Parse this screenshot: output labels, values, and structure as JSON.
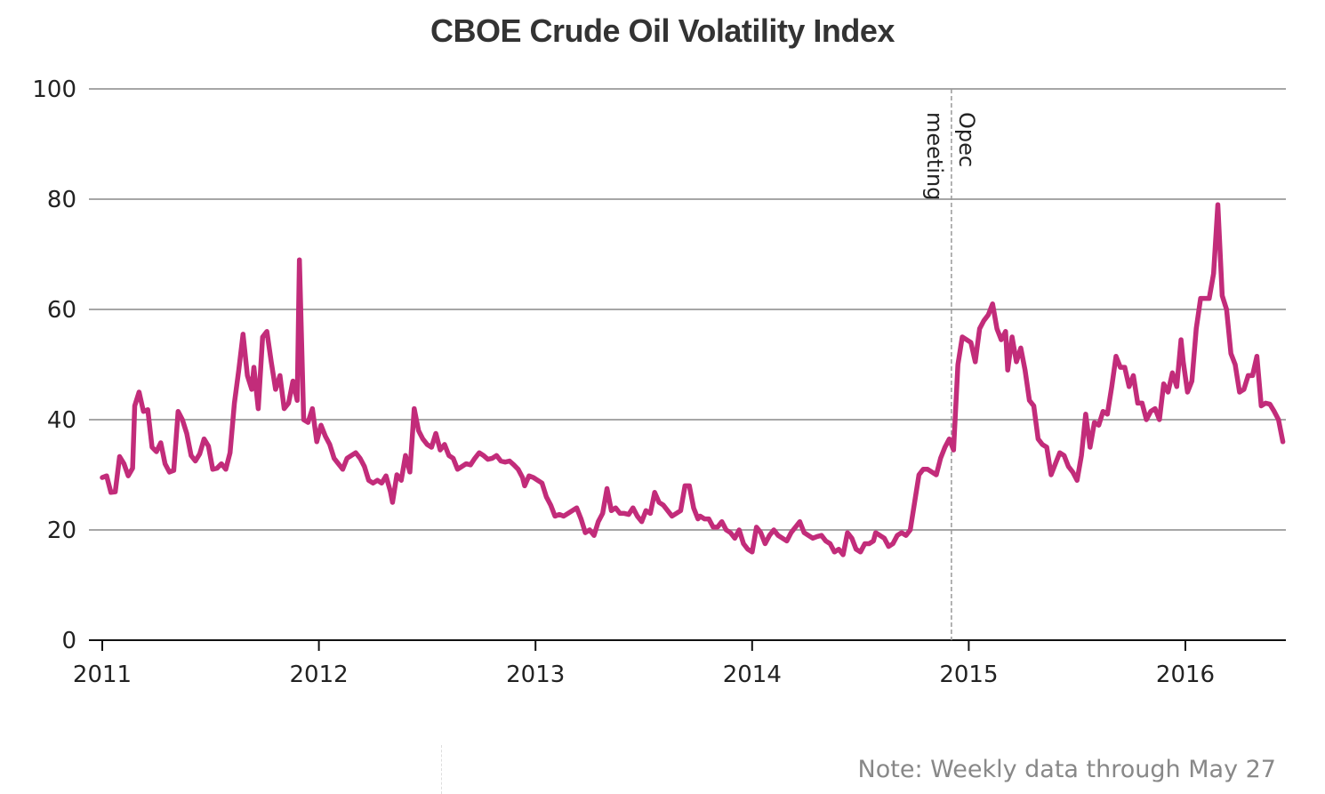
{
  "title": "CBOE Crude Oil Volatility Index",
  "note": "Note: Weekly data through May 27",
  "chart_data": {
    "type": "line",
    "title": "CBOE Crude Oil Volatility Index",
    "xlabel": "",
    "ylabel": "",
    "ylim": [
      0,
      100
    ],
    "xlim": [
      2011,
      2016.45
    ],
    "yticks": [
      0,
      20,
      40,
      60,
      80,
      100
    ],
    "xticks": [
      "2011",
      "2012",
      "2013",
      "2014",
      "2015",
      "2016"
    ],
    "grid": true,
    "color": "#c22c7a",
    "annotations": [
      {
        "x": 2014.92,
        "label_line1": "Opec",
        "label_line2": "meeting"
      }
    ],
    "series": [
      {
        "points": [
          [
            2011.0,
            29.5
          ],
          [
            2011.02,
            29.8
          ],
          [
            2011.04,
            26.8
          ],
          [
            2011.06,
            26.9
          ],
          [
            2011.08,
            33.3
          ],
          [
            2011.1,
            32.0
          ],
          [
            2011.12,
            29.8
          ],
          [
            2011.14,
            31.2
          ],
          [
            2011.15,
            42.5
          ],
          [
            2011.17,
            45.0
          ],
          [
            2011.19,
            41.5
          ],
          [
            2011.21,
            41.8
          ],
          [
            2011.23,
            35.0
          ],
          [
            2011.25,
            34.2
          ],
          [
            2011.27,
            35.8
          ],
          [
            2011.29,
            32.0
          ],
          [
            2011.31,
            30.5
          ],
          [
            2011.33,
            30.8
          ],
          [
            2011.35,
            41.5
          ],
          [
            2011.37,
            40.0
          ],
          [
            2011.39,
            37.5
          ],
          [
            2011.41,
            33.5
          ],
          [
            2011.43,
            32.5
          ],
          [
            2011.45,
            33.8
          ],
          [
            2011.47,
            36.5
          ],
          [
            2011.49,
            35.2
          ],
          [
            2011.51,
            31.0
          ],
          [
            2011.53,
            31.2
          ],
          [
            2011.55,
            32.0
          ],
          [
            2011.57,
            31.0
          ],
          [
            2011.59,
            34.0
          ],
          [
            2011.61,
            43.0
          ],
          [
            2011.63,
            49.0
          ],
          [
            2011.65,
            55.5
          ],
          [
            2011.67,
            48.0
          ],
          [
            2011.69,
            45.5
          ],
          [
            2011.7,
            49.5
          ],
          [
            2011.72,
            42.0
          ],
          [
            2011.74,
            55.0
          ],
          [
            2011.76,
            56.0
          ],
          [
            2011.78,
            50.5
          ],
          [
            2011.8,
            45.5
          ],
          [
            2011.82,
            48.0
          ],
          [
            2011.84,
            42.0
          ],
          [
            2011.86,
            43.0
          ],
          [
            2011.88,
            47.0
          ],
          [
            2011.9,
            43.5
          ],
          [
            2011.91,
            69.0
          ],
          [
            2011.93,
            40.0
          ],
          [
            2011.95,
            39.5
          ],
          [
            2011.97,
            42.0
          ],
          [
            2011.99,
            36.0
          ],
          [
            2012.01,
            39.0
          ],
          [
            2012.03,
            37.0
          ],
          [
            2012.05,
            35.5
          ],
          [
            2012.07,
            33.0
          ],
          [
            2012.09,
            32.0
          ],
          [
            2012.11,
            31.0
          ],
          [
            2012.13,
            33.0
          ],
          [
            2012.15,
            33.5
          ],
          [
            2012.17,
            34.0
          ],
          [
            2012.19,
            33.0
          ],
          [
            2012.21,
            31.5
          ],
          [
            2012.23,
            29.0
          ],
          [
            2012.25,
            28.5
          ],
          [
            2012.27,
            29.0
          ],
          [
            2012.29,
            28.5
          ],
          [
            2012.31,
            29.8
          ],
          [
            2012.33,
            27.0
          ],
          [
            2012.34,
            25.0
          ],
          [
            2012.36,
            30.0
          ],
          [
            2012.38,
            29.0
          ],
          [
            2012.4,
            33.5
          ],
          [
            2012.42,
            30.5
          ],
          [
            2012.44,
            42.0
          ],
          [
            2012.46,
            38.0
          ],
          [
            2012.48,
            36.5
          ],
          [
            2012.5,
            35.5
          ],
          [
            2012.52,
            35.0
          ],
          [
            2012.54,
            37.5
          ],
          [
            2012.56,
            34.5
          ],
          [
            2012.58,
            35.5
          ],
          [
            2012.6,
            33.5
          ],
          [
            2012.62,
            33.0
          ],
          [
            2012.64,
            31.0
          ],
          [
            2012.66,
            31.5
          ],
          [
            2012.68,
            32.0
          ],
          [
            2012.7,
            31.8
          ],
          [
            2012.72,
            33.0
          ],
          [
            2012.74,
            34.0
          ],
          [
            2012.76,
            33.5
          ],
          [
            2012.78,
            32.8
          ],
          [
            2012.8,
            33.0
          ],
          [
            2012.82,
            33.5
          ],
          [
            2012.84,
            32.5
          ],
          [
            2012.86,
            32.3
          ],
          [
            2012.88,
            32.5
          ],
          [
            2012.9,
            31.8
          ],
          [
            2012.92,
            31.0
          ],
          [
            2012.94,
            29.5
          ],
          [
            2012.95,
            28.0
          ],
          [
            2012.97,
            29.8
          ],
          [
            2012.99,
            29.5
          ],
          [
            2013.01,
            29.0
          ],
          [
            2013.03,
            28.5
          ],
          [
            2013.05,
            26.0
          ],
          [
            2013.07,
            24.5
          ],
          [
            2013.09,
            22.5
          ],
          [
            2013.11,
            22.8
          ],
          [
            2013.13,
            22.5
          ],
          [
            2013.15,
            23.0
          ],
          [
            2013.17,
            23.5
          ],
          [
            2013.19,
            24.0
          ],
          [
            2013.21,
            22.0
          ],
          [
            2013.23,
            19.5
          ],
          [
            2013.25,
            20.0
          ],
          [
            2013.27,
            19.0
          ],
          [
            2013.29,
            21.5
          ],
          [
            2013.31,
            23.0
          ],
          [
            2013.33,
            27.5
          ],
          [
            2013.35,
            23.5
          ],
          [
            2013.37,
            24.0
          ],
          [
            2013.39,
            23.0
          ],
          [
            2013.41,
            23.0
          ],
          [
            2013.43,
            22.8
          ],
          [
            2013.45,
            24.0
          ],
          [
            2013.47,
            22.5
          ],
          [
            2013.49,
            21.5
          ],
          [
            2013.51,
            23.5
          ],
          [
            2013.53,
            23.0
          ],
          [
            2013.55,
            26.8
          ],
          [
            2013.57,
            25.0
          ],
          [
            2013.59,
            24.5
          ],
          [
            2013.61,
            23.5
          ],
          [
            2013.63,
            22.5
          ],
          [
            2013.65,
            23.0
          ],
          [
            2013.67,
            23.5
          ],
          [
            2013.69,
            28.0
          ],
          [
            2013.71,
            28.0
          ],
          [
            2013.73,
            24.0
          ],
          [
            2013.75,
            22.0
          ],
          [
            2013.76,
            22.5
          ],
          [
            2013.78,
            22.0
          ],
          [
            2013.8,
            22.0
          ],
          [
            2013.82,
            20.5
          ],
          [
            2013.84,
            20.5
          ],
          [
            2013.86,
            21.5
          ],
          [
            2013.88,
            20.0
          ],
          [
            2013.9,
            19.5
          ],
          [
            2013.92,
            18.5
          ],
          [
            2013.94,
            20.0
          ],
          [
            2013.96,
            17.5
          ],
          [
            2013.98,
            16.5
          ],
          [
            2014.0,
            16.0
          ],
          [
            2014.02,
            20.5
          ],
          [
            2014.04,
            19.5
          ],
          [
            2014.06,
            17.5
          ],
          [
            2014.08,
            19.0
          ],
          [
            2014.1,
            20.0
          ],
          [
            2014.12,
            19.0
          ],
          [
            2014.14,
            18.5
          ],
          [
            2014.16,
            18.0
          ],
          [
            2014.18,
            19.5
          ],
          [
            2014.2,
            20.5
          ],
          [
            2014.22,
            21.5
          ],
          [
            2014.24,
            19.5
          ],
          [
            2014.26,
            19.0
          ],
          [
            2014.28,
            18.5
          ],
          [
            2014.3,
            18.8
          ],
          [
            2014.32,
            19.0
          ],
          [
            2014.34,
            18.0
          ],
          [
            2014.36,
            17.5
          ],
          [
            2014.38,
            16.0
          ],
          [
            2014.4,
            16.5
          ],
          [
            2014.42,
            15.5
          ],
          [
            2014.44,
            19.5
          ],
          [
            2014.46,
            18.5
          ],
          [
            2014.48,
            16.5
          ],
          [
            2014.5,
            16.0
          ],
          [
            2014.52,
            17.5
          ],
          [
            2014.54,
            17.5
          ],
          [
            2014.56,
            18.0
          ],
          [
            2014.57,
            19.5
          ],
          [
            2014.59,
            19.0
          ],
          [
            2014.61,
            18.5
          ],
          [
            2014.63,
            17.0
          ],
          [
            2014.65,
            17.5
          ],
          [
            2014.67,
            19.0
          ],
          [
            2014.69,
            19.5
          ],
          [
            2014.71,
            19.0
          ],
          [
            2014.73,
            20.0
          ],
          [
            2014.75,
            25.0
          ],
          [
            2014.77,
            30.0
          ],
          [
            2014.79,
            31.0
          ],
          [
            2014.81,
            31.0
          ],
          [
            2014.83,
            30.5
          ],
          [
            2014.85,
            30.0
          ],
          [
            2014.87,
            33.0
          ],
          [
            2014.89,
            35.0
          ],
          [
            2014.91,
            36.5
          ],
          [
            2014.93,
            34.5
          ],
          [
            2014.95,
            50.0
          ],
          [
            2014.97,
            55.0
          ],
          [
            2014.99,
            54.5
          ],
          [
            2015.01,
            54.0
          ],
          [
            2015.03,
            50.5
          ],
          [
            2015.05,
            56.5
          ],
          [
            2015.07,
            58.0
          ],
          [
            2015.09,
            59.0
          ],
          [
            2015.11,
            61.0
          ],
          [
            2015.13,
            56.5
          ],
          [
            2015.15,
            54.5
          ],
          [
            2015.17,
            56.0
          ],
          [
            2015.18,
            49.0
          ],
          [
            2015.2,
            55.0
          ],
          [
            2015.22,
            50.5
          ],
          [
            2015.24,
            53.0
          ],
          [
            2015.26,
            49.0
          ],
          [
            2015.28,
            43.5
          ],
          [
            2015.3,
            42.5
          ],
          [
            2015.32,
            36.5
          ],
          [
            2015.34,
            35.5
          ],
          [
            2015.36,
            35.0
          ],
          [
            2015.38,
            30.0
          ],
          [
            2015.4,
            32.0
          ],
          [
            2015.42,
            34.0
          ],
          [
            2015.44,
            33.5
          ],
          [
            2015.46,
            31.5
          ],
          [
            2015.48,
            30.5
          ],
          [
            2015.5,
            29.0
          ],
          [
            2015.52,
            33.5
          ],
          [
            2015.54,
            41.0
          ],
          [
            2015.56,
            35.0
          ],
          [
            2015.58,
            39.5
          ],
          [
            2015.6,
            39.0
          ],
          [
            2015.62,
            41.5
          ],
          [
            2015.64,
            41.0
          ],
          [
            2015.66,
            46.0
          ],
          [
            2015.68,
            51.5
          ],
          [
            2015.7,
            49.5
          ],
          [
            2015.72,
            49.5
          ],
          [
            2015.74,
            46.0
          ],
          [
            2015.76,
            48.0
          ],
          [
            2015.78,
            43.0
          ],
          [
            2015.8,
            43.0
          ],
          [
            2015.82,
            40.0
          ],
          [
            2015.84,
            41.5
          ],
          [
            2015.86,
            42.0
          ],
          [
            2015.88,
            40.0
          ],
          [
            2015.9,
            46.5
          ],
          [
            2015.92,
            45.0
          ],
          [
            2015.94,
            48.5
          ],
          [
            2015.96,
            46.0
          ],
          [
            2015.98,
            54.5
          ],
          [
            2015.99,
            50.5
          ],
          [
            2016.01,
            45.0
          ],
          [
            2016.03,
            47.0
          ],
          [
            2016.05,
            56.5
          ],
          [
            2016.07,
            62.0
          ],
          [
            2016.09,
            62.0
          ],
          [
            2016.11,
            62.0
          ],
          [
            2016.13,
            66.5
          ],
          [
            2016.15,
            79.0
          ],
          [
            2016.17,
            62.5
          ],
          [
            2016.19,
            60.0
          ],
          [
            2016.21,
            52.0
          ],
          [
            2016.23,
            50.0
          ],
          [
            2016.25,
            45.0
          ],
          [
            2016.27,
            45.5
          ],
          [
            2016.29,
            48.0
          ],
          [
            2016.31,
            48.0
          ],
          [
            2016.33,
            51.5
          ],
          [
            2016.35,
            42.5
          ],
          [
            2016.37,
            43.0
          ],
          [
            2016.39,
            42.8
          ],
          [
            2016.41,
            41.5
          ],
          [
            2016.43,
            40.0
          ],
          [
            2016.45,
            36.0
          ]
        ]
      }
    ]
  }
}
